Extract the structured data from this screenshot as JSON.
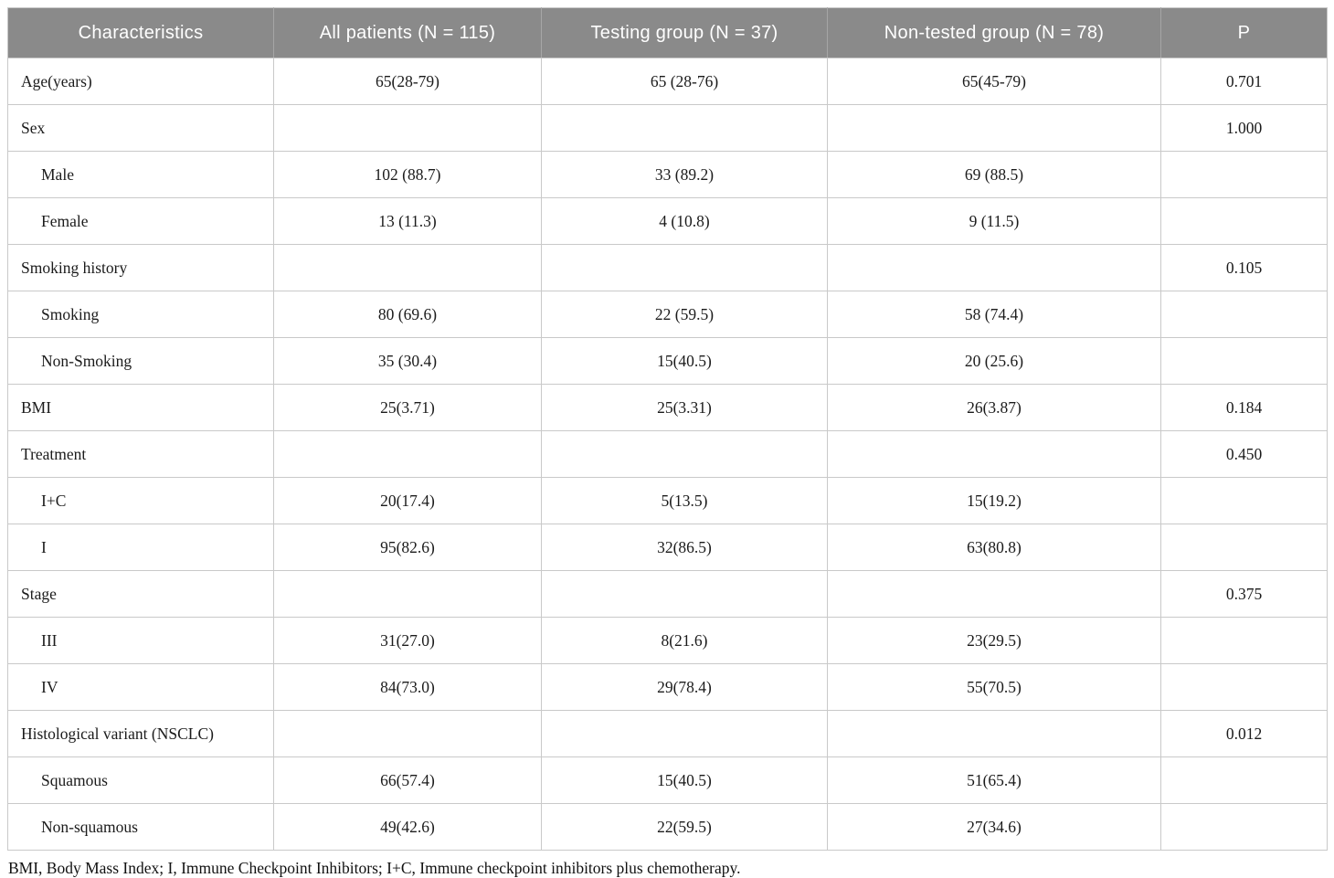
{
  "table": {
    "columns": [
      "Characteristics",
      "All patients (N = 115)",
      "Testing group (N = 37)",
      "Non-tested group (N = 78)",
      "P"
    ],
    "rows": [
      {
        "label": "Age(years)",
        "indent": false,
        "values": [
          "65(28-79)",
          "65 (28-76)",
          "65(45-79)",
          "0.701"
        ]
      },
      {
        "label": "Sex",
        "indent": false,
        "values": [
          "",
          "",
          "",
          "1.000"
        ]
      },
      {
        "label": "Male",
        "indent": true,
        "values": [
          "102 (88.7)",
          "33 (89.2)",
          "69 (88.5)",
          ""
        ]
      },
      {
        "label": "Female",
        "indent": true,
        "values": [
          "13 (11.3)",
          "4 (10.8)",
          "9 (11.5)",
          ""
        ]
      },
      {
        "label": "Smoking history",
        "indent": false,
        "values": [
          "",
          "",
          "",
          "0.105"
        ]
      },
      {
        "label": "Smoking",
        "indent": true,
        "values": [
          "80 (69.6)",
          "22 (59.5)",
          "58 (74.4)",
          ""
        ]
      },
      {
        "label": "Non-Smoking",
        "indent": true,
        "values": [
          "35 (30.4)",
          "15(40.5)",
          "20 (25.6)",
          ""
        ]
      },
      {
        "label": "BMI",
        "indent": false,
        "values": [
          "25(3.71)",
          "25(3.31)",
          "26(3.87)",
          "0.184"
        ]
      },
      {
        "label": "Treatment",
        "indent": false,
        "values": [
          "",
          "",
          "",
          "0.450"
        ]
      },
      {
        "label": "I+C",
        "indent": true,
        "values": [
          "20(17.4)",
          "5(13.5)",
          "15(19.2)",
          ""
        ]
      },
      {
        "label": "I",
        "indent": true,
        "values": [
          "95(82.6)",
          "32(86.5)",
          "63(80.8)",
          ""
        ]
      },
      {
        "label": "Stage",
        "indent": false,
        "values": [
          "",
          "",
          "",
          "0.375"
        ]
      },
      {
        "label": "III",
        "indent": true,
        "values": [
          "31(27.0)",
          "8(21.6)",
          "23(29.5)",
          ""
        ]
      },
      {
        "label": "IV",
        "indent": true,
        "values": [
          "84(73.0)",
          "29(78.4)",
          "55(70.5)",
          ""
        ]
      },
      {
        "label": "Histological variant (NSCLC)",
        "indent": false,
        "values": [
          "",
          "",
          "",
          "0.012"
        ]
      },
      {
        "label": "Squamous",
        "indent": true,
        "values": [
          "66(57.4)",
          "15(40.5)",
          "51(65.4)",
          ""
        ]
      },
      {
        "label": "Non-squamous",
        "indent": true,
        "values": [
          "49(42.6)",
          "22(59.5)",
          "27(34.6)",
          ""
        ]
      }
    ],
    "footnote": "BMI, Body Mass Index; I, Immune Checkpoint Inhibitors; I+C, Immune checkpoint inhibitors plus chemotherapy.",
    "colors": {
      "header_bg": "#8a8a8a",
      "header_text": "#ffffff",
      "border": "#c9c9c9"
    }
  }
}
